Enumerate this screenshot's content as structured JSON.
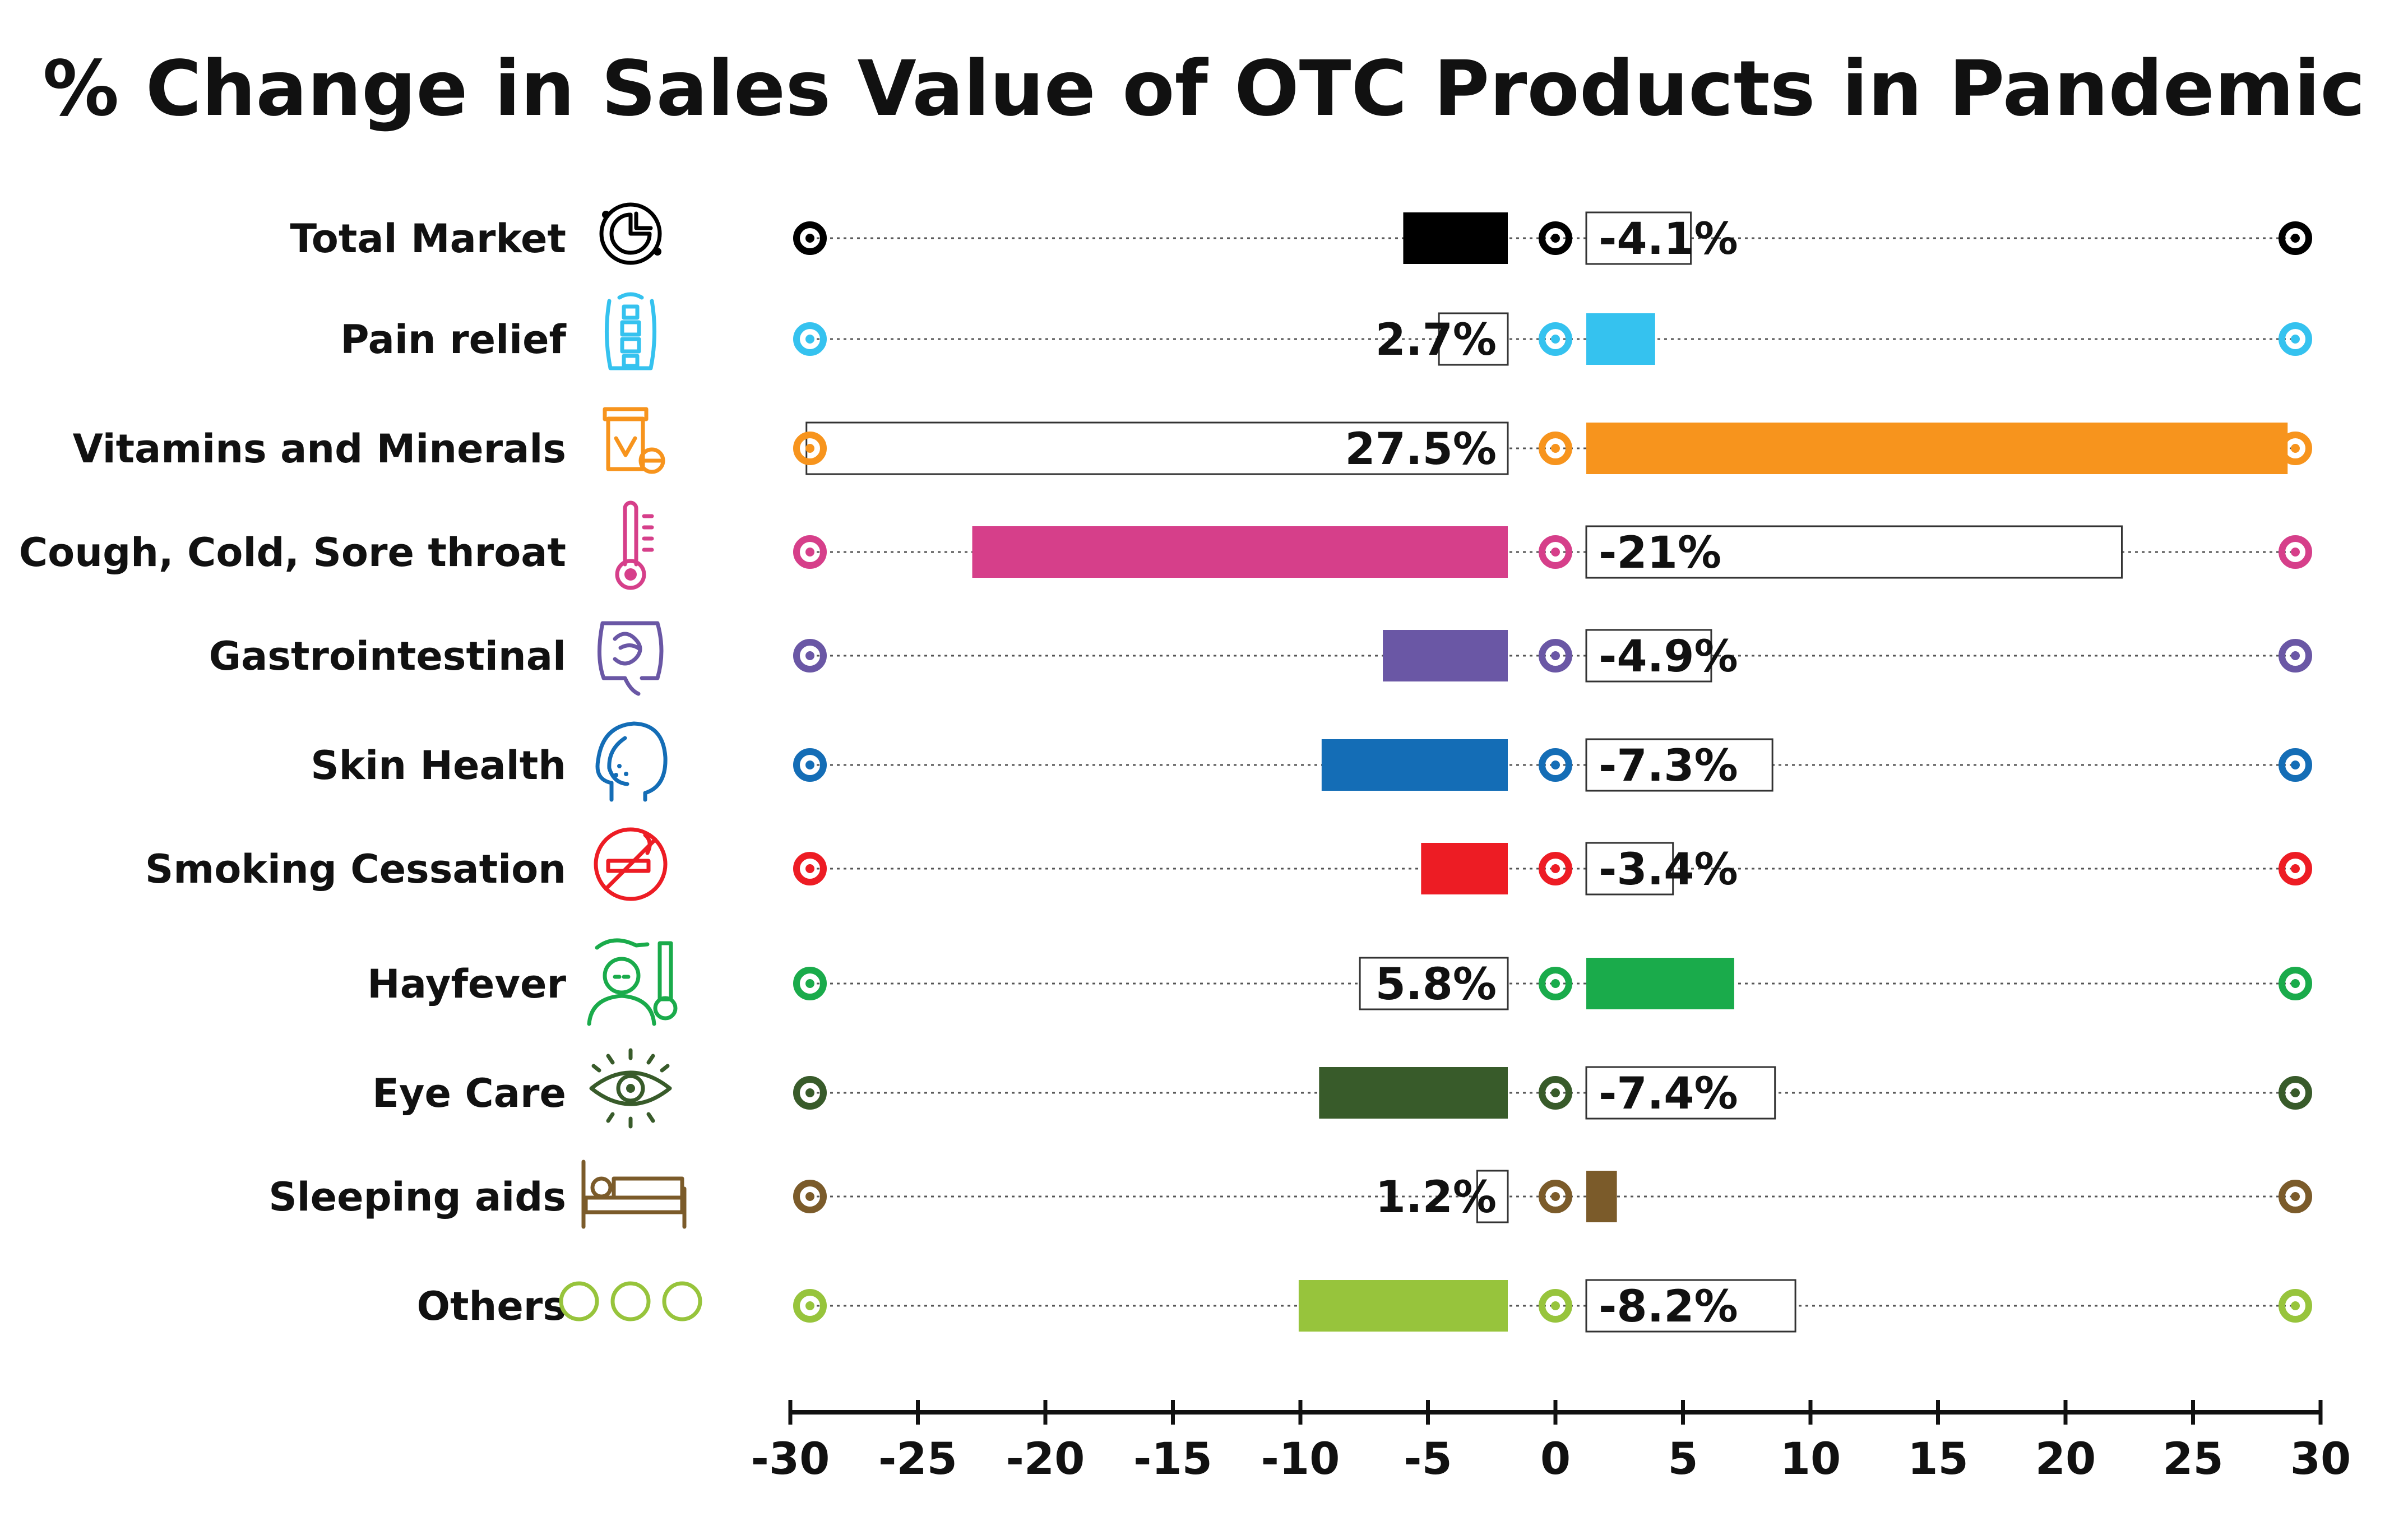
{
  "chart_data": {
    "type": "bar",
    "title": "% Change in Sales Value of OTC Products in Pandemic",
    "xlabel": "",
    "ylabel": "",
    "xlim": [
      -30,
      30
    ],
    "ticks": [
      -30,
      -25,
      -20,
      -15,
      -10,
      -5,
      0,
      5,
      10,
      15,
      20,
      25,
      30
    ],
    "grid": false,
    "legend": "none",
    "categories": [
      "Total Market",
      "Pain relief",
      "Vitamins and Minerals",
      "Cough, Cold, Sore throat",
      "Gastrointestinal",
      "Skin Health",
      "Smoking Cessation",
      "Hayfever",
      "Eye Care",
      "Sleeping aids",
      "Others"
    ],
    "values": [
      -4.1,
      2.7,
      27.5,
      -21,
      -4.9,
      -7.3,
      -3.4,
      5.8,
      -7.4,
      1.2,
      -8.2
    ],
    "value_labels": [
      "-4.1%",
      "2.7%",
      "27.5%",
      "-21%",
      "-4.9%",
      "-7.3%",
      "-3.4%",
      "5.8%",
      "-7.4%",
      "1.2%",
      "-8.2%"
    ],
    "colors": [
      "#000000",
      "#35c2ef",
      "#f7941d",
      "#d63f8a",
      "#6a57a5",
      "#146db6",
      "#ed1c24",
      "#1aab4b",
      "#385b2a",
      "#7b5b2a",
      "#97c43c"
    ],
    "icons": [
      "pie-chart-icon",
      "spine-icon",
      "vitamins-icon",
      "thermometer-icon",
      "intestine-icon",
      "skin-face-icon",
      "no-smoking-icon",
      "hayfever-person-icon",
      "eye-icon",
      "bed-icon",
      "three-circles-icon"
    ]
  }
}
